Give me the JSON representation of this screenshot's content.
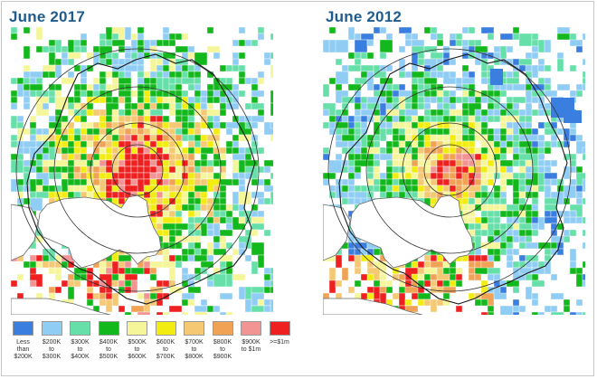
{
  "panels": [
    {
      "title": "June 2017",
      "scenario": "2017"
    },
    {
      "title": "June 2012",
      "scenario": "2012"
    }
  ],
  "legend": [
    {
      "color": "#3a7fe0",
      "l1": "Less",
      "l2": "than",
      "l3": "$200K"
    },
    {
      "color": "#8fcdf5",
      "l1": "$200K",
      "l2": "to",
      "l3": "$300K"
    },
    {
      "color": "#66e0a8",
      "l1": "$300K",
      "l2": "to",
      "l3": "$400K"
    },
    {
      "color": "#12b81c",
      "l1": "$400K",
      "l2": "to",
      "l3": "$500K"
    },
    {
      "color": "#f5f59a",
      "l1": "$500K",
      "l2": "to",
      "l3": "$600K"
    },
    {
      "color": "#f2ec10",
      "l1": "$600K",
      "l2": "to",
      "l3": "$700K"
    },
    {
      "color": "#f5c873",
      "l1": "$700K",
      "l2": "to",
      "l3": "$800K"
    },
    {
      "color": "#f0a255",
      "l1": "$800K",
      "l2": "to",
      "l3": "$900K"
    },
    {
      "color": "#f29494",
      "l1": "$900K",
      "l2": "to $1m",
      "l3": ""
    },
    {
      "color": "#ee2020",
      "l1": ">=$1m",
      "l2": "",
      "l3": ""
    }
  ]
}
